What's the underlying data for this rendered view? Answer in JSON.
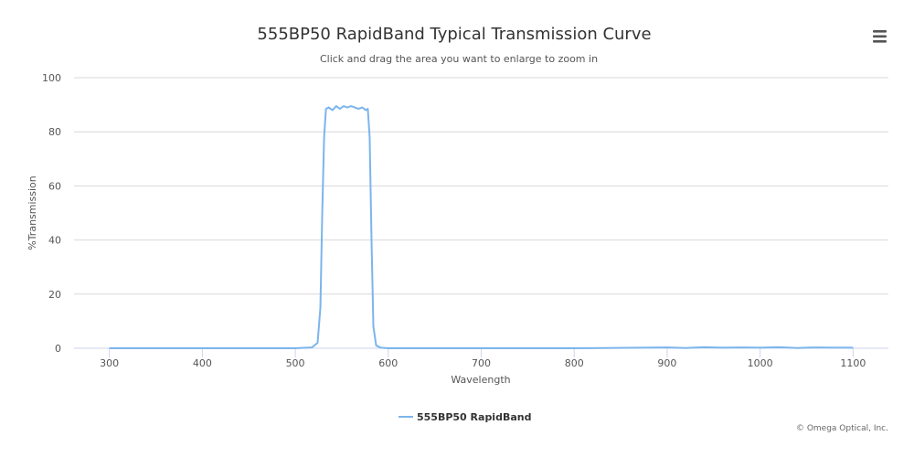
{
  "chart_data": {
    "type": "line",
    "title": "555BP50 RapidBand Typical Transmission Curve",
    "subtitle": "Click and drag the area you want to enlarge to zoom in",
    "xlabel": "Wavelength",
    "ylabel": "%Transmission",
    "xlim": [
      262,
      1138
    ],
    "ylim": [
      0,
      100
    ],
    "x_ticks": [
      300,
      400,
      500,
      600,
      700,
      800,
      900,
      1000,
      1100
    ],
    "y_ticks": [
      0,
      20,
      40,
      60,
      80,
      100
    ],
    "grid": true,
    "legend_position": "bottom-center",
    "series": [
      {
        "name": "555BP50 RapidBand",
        "color": "#7cb5ec",
        "x": [
          300,
          500,
          518,
          524,
          527,
          529,
          531,
          533,
          536,
          540,
          544,
          548,
          552,
          556,
          560,
          564,
          568,
          572,
          576,
          578,
          580,
          582,
          584,
          587,
          592,
          600,
          700,
          800,
          900,
          920,
          940,
          960,
          980,
          1000,
          1020,
          1040,
          1060,
          1080,
          1100
        ],
        "y": [
          0,
          0,
          0.3,
          2,
          15,
          50,
          78,
          88.5,
          89,
          88,
          89.5,
          88.5,
          89.5,
          89,
          89.5,
          89,
          88.5,
          89,
          88,
          88.5,
          78,
          40,
          8,
          1,
          0.2,
          0,
          0,
          0,
          0.3,
          0.1,
          0.4,
          0.2,
          0.3,
          0.2,
          0.4,
          0.1,
          0.3,
          0.2,
          0.2
        ]
      }
    ]
  },
  "menu": {
    "icon": "hamburger-menu-icon"
  },
  "credits": "© Omega Optical, Inc."
}
